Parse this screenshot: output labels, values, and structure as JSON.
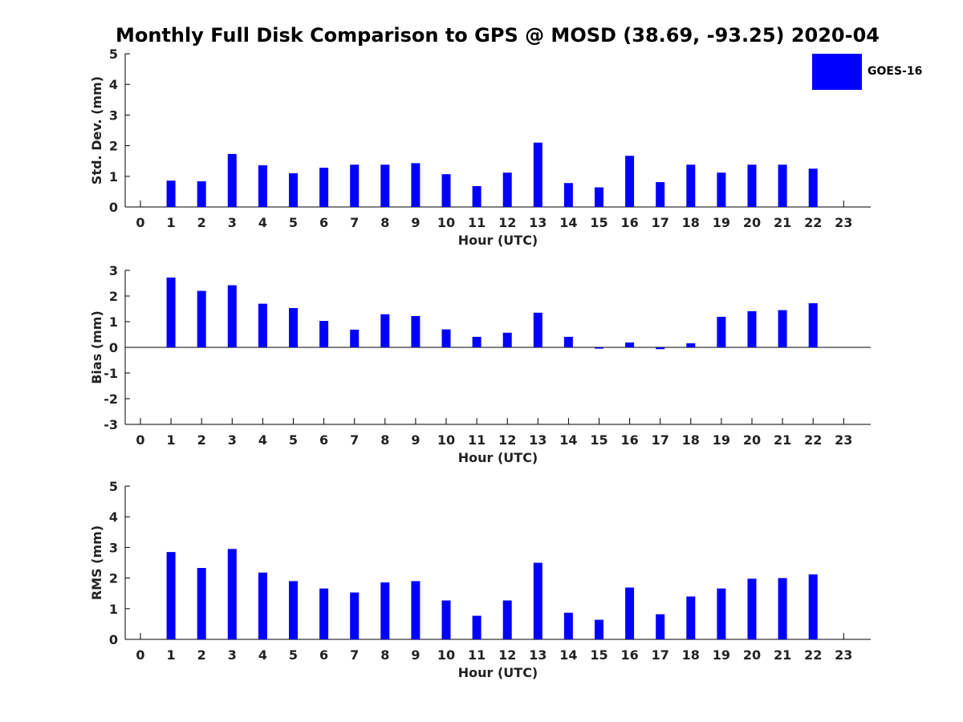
{
  "figure": {
    "title": "Monthly Full Disk Comparison to GPS @ MOSD (38.69, -93.25) 2020-04",
    "legend": {
      "label": "GOES-16",
      "color": "#0000ff",
      "placement": "top-right"
    }
  },
  "chart_data": [
    {
      "type": "bar",
      "categories": [
        "0",
        "1",
        "2",
        "3",
        "4",
        "5",
        "6",
        "7",
        "8",
        "9",
        "10",
        "11",
        "12",
        "13",
        "14",
        "15",
        "16",
        "17",
        "18",
        "19",
        "20",
        "21",
        "22",
        "23"
      ],
      "series": [
        {
          "name": "GOES-16",
          "values": [
            null,
            0.86,
            0.84,
            1.73,
            1.36,
            1.1,
            1.28,
            1.38,
            1.38,
            1.43,
            1.07,
            0.68,
            1.12,
            2.1,
            0.78,
            0.64,
            1.67,
            0.81,
            1.38,
            1.12,
            1.38,
            1.38,
            1.25,
            null
          ]
        }
      ],
      "xlabel": "Hour (UTC)",
      "ylabel": "Std. Dev. (mm)",
      "ylim": [
        0,
        5
      ],
      "yticks": [
        "0",
        "1",
        "2",
        "3",
        "4",
        "5"
      ],
      "zero_line": false,
      "grid": false
    },
    {
      "type": "bar",
      "categories": [
        "0",
        "1",
        "2",
        "3",
        "4",
        "5",
        "6",
        "7",
        "8",
        "9",
        "10",
        "11",
        "12",
        "13",
        "14",
        "15",
        "16",
        "17",
        "18",
        "19",
        "20",
        "21",
        "22",
        "23"
      ],
      "series": [
        {
          "name": "GOES-16",
          "values": [
            null,
            2.72,
            2.2,
            2.42,
            1.7,
            1.53,
            1.03,
            0.69,
            1.29,
            1.22,
            0.7,
            0.41,
            0.57,
            1.35,
            0.41,
            -0.05,
            0.19,
            -0.07,
            0.16,
            1.19,
            1.41,
            1.45,
            1.72,
            null
          ]
        }
      ],
      "xlabel": "Hour (UTC)",
      "ylabel": "Bias (mm)",
      "ylim": [
        -3,
        3
      ],
      "yticks": [
        "-3",
        "-2",
        "-1",
        "0",
        "1",
        "2",
        "3"
      ],
      "zero_line": true,
      "grid": false
    },
    {
      "type": "bar",
      "categories": [
        "0",
        "1",
        "2",
        "3",
        "4",
        "5",
        "6",
        "7",
        "8",
        "9",
        "10",
        "11",
        "12",
        "13",
        "14",
        "15",
        "16",
        "17",
        "18",
        "19",
        "20",
        "21",
        "22",
        "23"
      ],
      "series": [
        {
          "name": "GOES-16",
          "values": [
            null,
            2.85,
            2.33,
            2.95,
            2.18,
            1.9,
            1.66,
            1.53,
            1.86,
            1.9,
            1.27,
            0.77,
            1.27,
            2.5,
            0.87,
            0.64,
            1.69,
            0.82,
            1.4,
            1.66,
            1.98,
            2.0,
            2.12,
            null
          ]
        }
      ],
      "xlabel": "Hour (UTC)",
      "ylabel": "RMS (mm)",
      "ylim": [
        0,
        5
      ],
      "yticks": [
        "0",
        "1",
        "2",
        "3",
        "4",
        "5"
      ],
      "zero_line": false,
      "grid": false
    }
  ]
}
